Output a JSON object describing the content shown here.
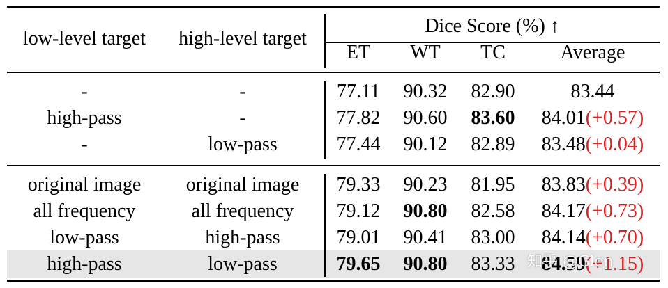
{
  "header": {
    "col_low": "low-level target",
    "col_high": "high-level target",
    "group_title": "Dice Score (%) ↑",
    "sub_et": "ET",
    "sub_wt": "WT",
    "sub_tc": "TC",
    "sub_avg": "Average"
  },
  "rows": [
    {
      "low": "-",
      "high": "-",
      "et": "77.11",
      "wt": "90.32",
      "tc": "82.90",
      "avg": "83.44",
      "delta": ""
    },
    {
      "low": "high-pass",
      "high": "-",
      "et": "77.82",
      "wt": "90.60",
      "tc": "83.60",
      "avg": "84.01",
      "delta": "(+0.57)"
    },
    {
      "low": "-",
      "high": "low-pass",
      "et": "77.44",
      "wt": "90.12",
      "tc": "82.89",
      "avg": "83.48",
      "delta": "(+0.04)"
    },
    {
      "low": "original image",
      "high": "original image",
      "et": "79.33",
      "wt": "90.23",
      "tc": "81.95",
      "avg": "83.83",
      "delta": "(+0.39)"
    },
    {
      "low": "all frequency",
      "high": "all frequency",
      "et": "79.12",
      "wt": "90.80",
      "tc": "82.58",
      "avg": "84.17",
      "delta": "(+0.73)"
    },
    {
      "low": "low-pass",
      "high": "high-pass",
      "et": "79.01",
      "wt": "90.41",
      "tc": "83.00",
      "avg": "84.14",
      "delta": "(+0.70)"
    },
    {
      "low": "high-pass",
      "high": "low-pass",
      "et": "79.65",
      "wt": "90.80",
      "tc": "83.33",
      "avg": "84.59",
      "delta": "(+1.15)"
    }
  ],
  "watermark": "知乎 @Glen",
  "colors": {
    "delta": "#e02020",
    "highlight_row": "#e6e6e6",
    "rule": "#000000"
  }
}
